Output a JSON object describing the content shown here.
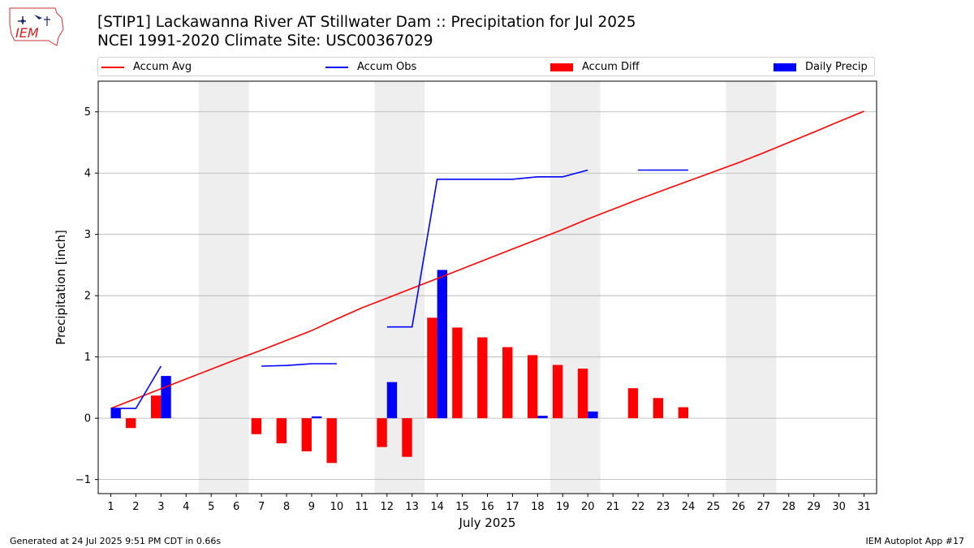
{
  "header": {
    "title_line1": "[STIP1] Lackawanna River  AT Stillwater Dam :: Precipitation for Jul 2025",
    "title_line2": "NCEI 1991-2020 Climate Site: USC00367029",
    "logo_text": "IEM"
  },
  "legend": {
    "accum_avg": "Accum Avg",
    "accum_obs": "Accum Obs",
    "accum_diff": "Accum Diff",
    "daily_precip": "Daily Precip"
  },
  "colors": {
    "accum_avg": "#ff0000",
    "accum_obs": "#0000ff",
    "accum_diff": "#ff0000",
    "daily_precip": "#0000ff",
    "weekend_shade": "#eeeeee",
    "grid": "#b0b0b0"
  },
  "footer": {
    "left": "Generated at 24 Jul 2025 9:51 PM CDT in 0.66s",
    "right": "IEM Autoplot App #17"
  },
  "chart_data": {
    "type": "bar",
    "xlabel": "July 2025",
    "ylabel": "Precipitation [inch]",
    "xlim": [
      0.5,
      31.5
    ],
    "ylim": [
      -1.23,
      5.5
    ],
    "x_ticks": [
      1,
      2,
      3,
      4,
      5,
      6,
      7,
      8,
      9,
      10,
      11,
      12,
      13,
      14,
      15,
      16,
      17,
      18,
      19,
      20,
      21,
      22,
      23,
      24,
      25,
      26,
      27,
      28,
      29,
      30,
      31
    ],
    "y_ticks": [
      -1,
      0,
      1,
      2,
      3,
      4,
      5
    ],
    "grid": "horizontal",
    "legend_position": "top",
    "weekend_days": [
      [
        5,
        6
      ],
      [
        12,
        13
      ],
      [
        19,
        20
      ],
      [
        26,
        27
      ]
    ],
    "series": [
      {
        "name": "Accum Avg",
        "kind": "line",
        "x": [
          1,
          2,
          3,
          4,
          5,
          6,
          7,
          8,
          9,
          10,
          11,
          12,
          13,
          14,
          15,
          16,
          17,
          18,
          19,
          20,
          21,
          22,
          23,
          24,
          25,
          26,
          27,
          28,
          29,
          30,
          31
        ],
        "values": [
          0.16,
          0.32,
          0.48,
          0.64,
          0.8,
          0.96,
          1.11,
          1.27,
          1.43,
          1.62,
          1.8,
          1.96,
          2.12,
          2.28,
          2.44,
          2.6,
          2.76,
          2.92,
          3.08,
          3.25,
          3.41,
          3.57,
          3.72,
          3.87,
          4.02,
          4.17,
          4.33,
          4.5,
          4.67,
          4.84,
          5.01
        ]
      },
      {
        "name": "Accum Obs",
        "kind": "line",
        "x": [
          1,
          2,
          3,
          4,
          5,
          6,
          7,
          8,
          9,
          10,
          11,
          12,
          13,
          14,
          15,
          16,
          17,
          18,
          19,
          20,
          21,
          22,
          23,
          24
        ],
        "values": [
          0.16,
          0.16,
          0.85,
          null,
          null,
          null,
          0.85,
          0.86,
          0.89,
          0.89,
          null,
          1.49,
          1.49,
          3.9,
          3.9,
          3.9,
          3.9,
          3.94,
          3.94,
          4.05,
          null,
          4.05,
          4.05,
          4.05
        ]
      },
      {
        "name": "Accum Diff",
        "kind": "bar",
        "x": [
          1,
          2,
          3,
          7,
          8,
          9,
          10,
          12,
          13,
          14,
          15,
          16,
          17,
          18,
          19,
          20,
          22,
          23,
          24
        ],
        "values": [
          0.0,
          -0.16,
          0.37,
          -0.26,
          -0.41,
          -0.54,
          -0.73,
          -0.47,
          -0.63,
          1.64,
          1.48,
          1.32,
          1.16,
          1.03,
          0.87,
          0.81,
          0.49,
          0.33,
          0.18
        ]
      },
      {
        "name": "Daily Precip",
        "kind": "bar",
        "x": [
          1,
          3,
          9,
          12,
          14,
          18,
          20
        ],
        "values": [
          0.16,
          0.69,
          0.03,
          0.59,
          2.42,
          0.04,
          0.11
        ]
      }
    ]
  }
}
